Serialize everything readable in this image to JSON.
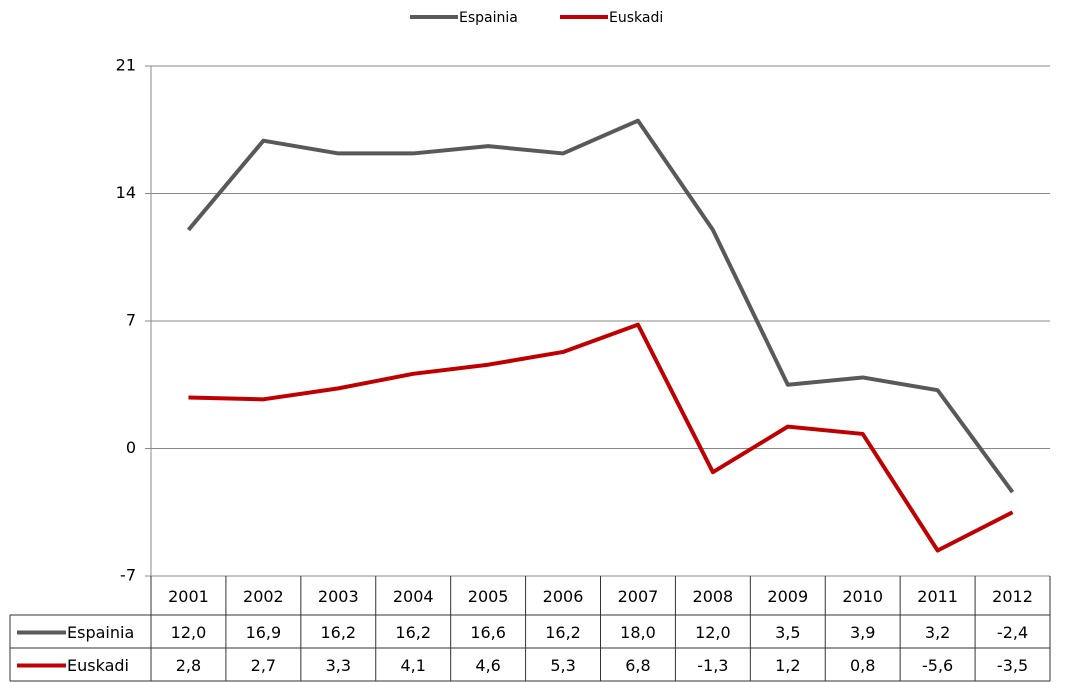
{
  "chart_data": {
    "type": "line",
    "categories": [
      "2001",
      "2002",
      "2003",
      "2004",
      "2005",
      "2006",
      "2007",
      "2008",
      "2009",
      "2010",
      "2011",
      "2012"
    ],
    "series": [
      {
        "name": "Espainia",
        "color": "#595959",
        "values": [
          12.0,
          16.9,
          16.2,
          16.2,
          16.6,
          16.2,
          18.0,
          12.0,
          3.5,
          3.9,
          3.2,
          -2.4
        ],
        "value_labels": [
          "12,0",
          "16,9",
          "16,2",
          "16,2",
          "16,6",
          "16,2",
          "18,0",
          "12,0",
          "3,5",
          "3,9",
          "3,2",
          "-2,4"
        ]
      },
      {
        "name": "Euskadi",
        "color": "#c00000",
        "values": [
          2.8,
          2.7,
          3.3,
          4.1,
          4.6,
          5.3,
          6.8,
          -1.3,
          1.2,
          0.8,
          -5.6,
          -3.5
        ],
        "value_labels": [
          "2,8",
          "2,7",
          "3,3",
          "4,1",
          "4,6",
          "5,3",
          "6,8",
          "-1,3",
          "1,2",
          "0,8",
          "-5,6",
          "-3,5"
        ]
      }
    ],
    "ylim": [
      -7,
      21
    ],
    "yticks": [
      -7,
      0,
      7,
      14,
      21
    ],
    "grid": true,
    "legend": "top",
    "data_table": true
  }
}
